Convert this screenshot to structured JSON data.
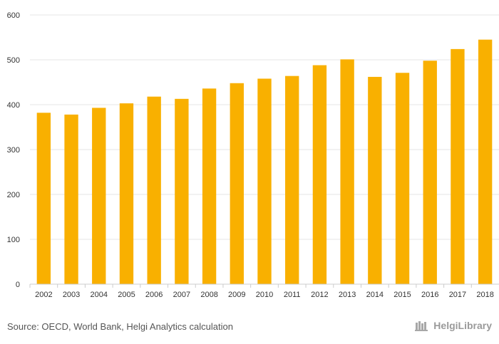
{
  "chart_data": {
    "type": "bar",
    "title": "",
    "xlabel": "",
    "ylabel": "",
    "categories": [
      "2002",
      "2003",
      "2004",
      "2005",
      "2006",
      "2007",
      "2008",
      "2009",
      "2010",
      "2011",
      "2012",
      "2013",
      "2014",
      "2015",
      "2016",
      "2017",
      "2018"
    ],
    "values": [
      382,
      378,
      393,
      403,
      418,
      413,
      436,
      448,
      458,
      464,
      488,
      501,
      462,
      471,
      498,
      524,
      545
    ],
    "ylim": [
      0,
      600
    ],
    "yticks": [
      0,
      100,
      200,
      300,
      400,
      500,
      600
    ],
    "grid": true,
    "legend": "none",
    "bar_color": "#f9b000"
  },
  "footer": {
    "source": "Source: OECD, World Bank, Helgi Analytics calculation",
    "logo_text": "HelgiLibrary"
  },
  "colors": {
    "grid": "#e6e6e6",
    "axis": "#cccccc",
    "text": "#333333"
  }
}
